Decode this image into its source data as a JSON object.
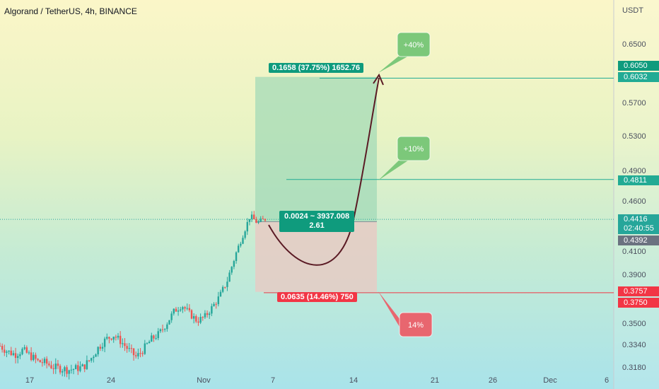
{
  "header": {
    "title": "Algorand / TetherUS, 4h, BINANCE"
  },
  "axis": {
    "currency": "USDT",
    "y_ticks": [
      "0.6500",
      "0.5700",
      "0.5300",
      "0.4900",
      "0.4600",
      "0.4100",
      "0.3900",
      "0.3500",
      "0.3340",
      "0.3180"
    ],
    "x_ticks": [
      "17",
      "24",
      "Nov",
      "7",
      "14",
      "21",
      "26",
      "Dec",
      "6"
    ]
  },
  "price_tags": {
    "p6050": "0.6050",
    "p6032": "0.6032",
    "p4811": "0.4811",
    "p4416": "0.4416",
    "countdown": "02:40:55",
    "p4392": "0.4392",
    "p3757": "0.3757",
    "p3750": "0.3750"
  },
  "position": {
    "target_label": "0.1658 (37.75%) 1652.76",
    "entry_label_1": "0.0024 ~ 3937.008",
    "entry_label_2": "2.61",
    "stop_label": "0.0635 (14.46%) 750"
  },
  "callouts": {
    "c40": "+40%",
    "c10": "+10%",
    "c14": "14%"
  },
  "colors": {
    "green": "#0f9b7d",
    "red": "#f23645",
    "target_fill": "#9fd9b6",
    "stop_fill": "#e8c9c3",
    "callout_green": "#7cc87a",
    "callout_red": "#e8666f"
  },
  "chart_data": {
    "type": "candlestick",
    "title": "Algorand / TetherUS, 4h, BINANCE",
    "ylabel": "USDT",
    "y_ticks": [
      0.65,
      0.57,
      0.53,
      0.49,
      0.46,
      0.41,
      0.39,
      0.35,
      0.334,
      0.318
    ],
    "x_ticks": [
      "17",
      "24",
      "Nov",
      "7",
      "14",
      "21",
      "26",
      "Dec",
      "6"
    ],
    "close_path": [
      0.333,
      0.329,
      0.327,
      0.33,
      0.326,
      0.322,
      0.321,
      0.318,
      0.317,
      0.316,
      0.317,
      0.318,
      0.324,
      0.332,
      0.338,
      0.341,
      0.336,
      0.33,
      0.325,
      0.331,
      0.338,
      0.342,
      0.35,
      0.36,
      0.365,
      0.358,
      0.352,
      0.355,
      0.363,
      0.372,
      0.385,
      0.405,
      0.425,
      0.445,
      0.438,
      0.442
    ],
    "long_position": {
      "entry": 0.4392,
      "target": 0.605,
      "stop": 0.3757,
      "target_change": "0.1658 (37.75%)",
      "stop_change": "0.0635 (14.46%)",
      "risk_reward": 2.61
    },
    "horizontal_levels": [
      0.6032,
      0.4811,
      0.375
    ],
    "last_price": 0.4416
  }
}
